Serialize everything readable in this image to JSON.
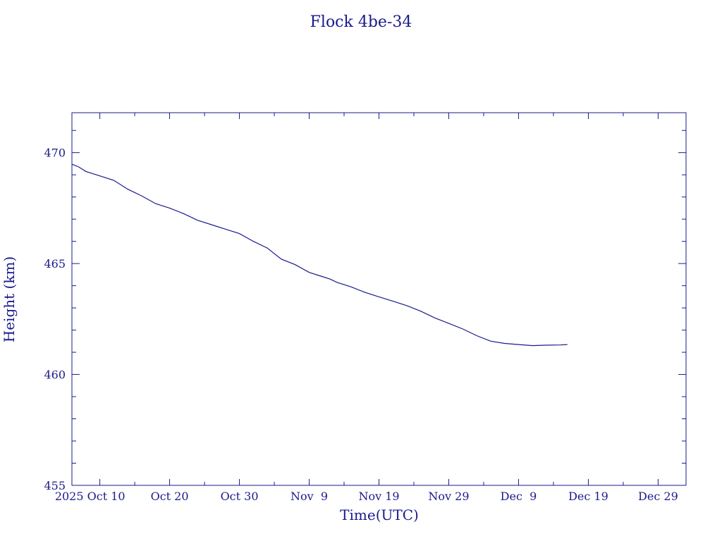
{
  "chart_data": {
    "type": "line",
    "title": "Flock 4be-34",
    "xlabel": "Time(UTC)",
    "ylabel": "Height (km)",
    "ylim": [
      455,
      471.8
    ],
    "xlim": [
      "2025-10-06",
      "2026-01-02"
    ],
    "x_ticks": [
      {
        "date": "2025-10-10",
        "label": "2025 Oct 10"
      },
      {
        "date": "2025-10-20",
        "label": "Oct 20"
      },
      {
        "date": "2025-10-30",
        "label": "Oct 30"
      },
      {
        "date": "2025-11-09",
        "label": "Nov  9"
      },
      {
        "date": "2025-11-19",
        "label": "Nov 19"
      },
      {
        "date": "2025-11-29",
        "label": "Nov 29"
      },
      {
        "date": "2025-12-09",
        "label": "Dec  9"
      },
      {
        "date": "2025-12-19",
        "label": "Dec 19"
      },
      {
        "date": "2025-12-29",
        "label": "Dec 29"
      }
    ],
    "y_ticks": [
      455,
      460,
      465,
      470
    ],
    "grid": false,
    "color": "#1a1a8c",
    "series": [
      {
        "x": [
          "2025-10-06",
          "2025-10-07",
          "2025-10-08",
          "2025-10-09",
          "2025-10-10",
          "2025-10-12",
          "2025-10-14",
          "2025-10-16",
          "2025-10-18",
          "2025-10-20",
          "2025-10-22",
          "2025-10-24",
          "2025-10-26",
          "2025-10-28",
          "2025-10-30",
          "2025-11-01",
          "2025-11-03",
          "2025-11-05",
          "2025-11-07",
          "2025-11-09",
          "2025-11-11",
          "2025-11-12",
          "2025-11-13",
          "2025-11-15",
          "2025-11-17",
          "2025-11-19",
          "2025-11-21",
          "2025-11-23",
          "2025-11-25",
          "2025-11-27",
          "2025-11-29",
          "2025-12-01",
          "2025-12-03",
          "2025-12-05",
          "2025-12-07",
          "2025-12-09",
          "2025-12-11",
          "2025-12-13",
          "2025-12-15",
          "2025-12-16"
        ],
        "y": [
          469.48,
          469.35,
          469.15,
          469.05,
          468.95,
          468.75,
          468.35,
          468.05,
          467.7,
          467.5,
          467.25,
          466.95,
          466.75,
          466.55,
          466.35,
          466.0,
          465.7,
          465.2,
          464.95,
          464.6,
          464.4,
          464.3,
          464.15,
          463.95,
          463.7,
          463.5,
          463.3,
          463.1,
          462.85,
          462.55,
          462.3,
          462.05,
          461.75,
          461.5,
          461.4,
          461.35,
          461.3,
          461.32,
          461.33,
          461.35
        ]
      }
    ]
  }
}
